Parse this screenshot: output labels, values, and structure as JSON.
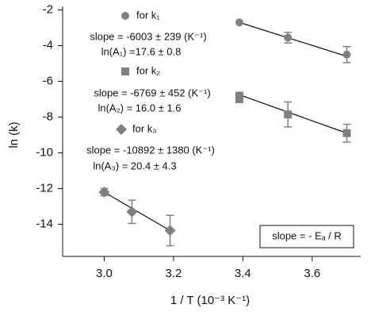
{
  "chart_data": {
    "type": "scatter",
    "xlabel": "1 / T (10⁻³ K⁻¹)",
    "ylabel": "ln (k)",
    "xlim": [
      2.88,
      3.74
    ],
    "ylim": [
      -15.8,
      -1.8
    ],
    "xticks": [
      {
        "value": 3.0,
        "label": "3.0"
      },
      {
        "value": 3.2,
        "label": "3.2"
      },
      {
        "value": 3.4,
        "label": "3.4"
      },
      {
        "value": 3.6,
        "label": "3.6"
      }
    ],
    "yticks": [
      -2,
      -4,
      -6,
      -8,
      -10,
      -12,
      -14
    ],
    "series": [
      {
        "name": "for k₁",
        "color": "#808080",
        "marker": "circle",
        "x": [
          3.39,
          3.53,
          3.7
        ],
        "values": [
          -2.7,
          -3.55,
          -4.5
        ],
        "errors": [
          null,
          0.3,
          0.45
        ],
        "fit": {
          "x": [
            3.39,
            3.7
          ],
          "values": [
            -2.7,
            -4.6
          ]
        }
      },
      {
        "name": "for k₂",
        "color": "#808080",
        "marker": "square",
        "x": [
          3.39,
          3.39,
          3.53,
          3.7
        ],
        "values": [
          -6.8,
          -7.0,
          -7.85,
          -8.9
        ],
        "errors": [
          null,
          null,
          0.7,
          0.5
        ],
        "fit": {
          "x": [
            3.39,
            3.7
          ],
          "values": [
            -6.75,
            -8.9
          ]
        }
      },
      {
        "name": "for k₃",
        "color": "#808080",
        "marker": "diamond",
        "x": [
          3.0,
          3.08,
          3.19
        ],
        "values": [
          -12.2,
          -13.3,
          -14.35
        ],
        "errors": [
          0.2,
          0.65,
          0.85
        ],
        "fit": {
          "x": [
            3.0,
            3.19
          ],
          "values": [
            -12.2,
            -14.35
          ]
        }
      }
    ],
    "annotations": [
      "slope = -6003 ± 239 (K⁻¹)",
      "ln(A₁) =17.6 ± 0.8",
      "slope = -6769 ± 452 (K⁻¹)",
      "ln(A₂) = 16.0 ± 1.6",
      "slope = -10892 ± 1380 (K⁻¹)",
      "ln(A₃) = 20.4 ± 4.3",
      "slope = - Eₐ / R"
    ]
  }
}
